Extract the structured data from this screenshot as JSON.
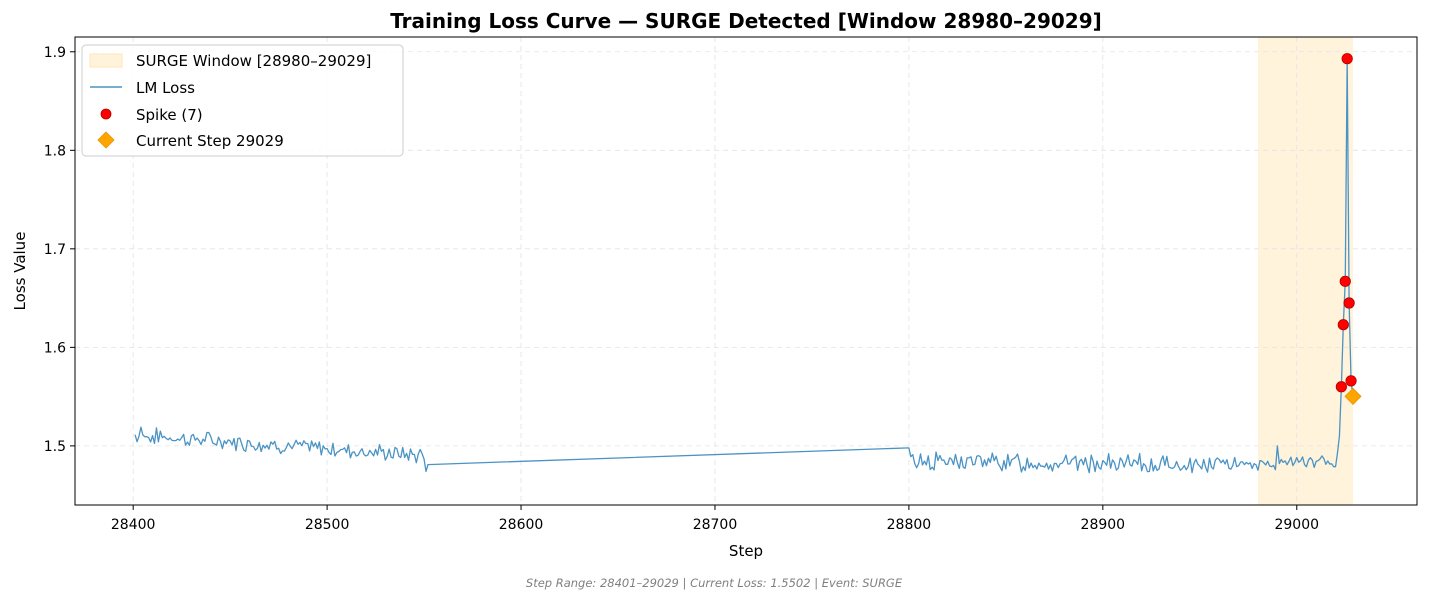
{
  "chart_data": {
    "type": "line",
    "title": "Training Loss Curve — SURGE Detected [Window 28980–29029]",
    "xlabel": "Step",
    "ylabel": "Loss Value",
    "xlim": [
      28370,
      29062
    ],
    "ylim": [
      1.44,
      1.915
    ],
    "xticks": [
      28400,
      28500,
      28600,
      28700,
      28800,
      28900,
      29000
    ],
    "yticks": [
      1.5,
      1.6,
      1.7,
      1.8,
      1.9
    ],
    "grid": true,
    "legend_position": "upper-left",
    "surge_window": {
      "label": "SURGE Window [28980–29029]",
      "start": 28980,
      "end": 29029,
      "color": "#fff3dc"
    },
    "series": [
      {
        "name": "LM Loss",
        "color": "#4a93c4",
        "segments": [
          {
            "start": 28401,
            "end": 28550,
            "base_start": 1.511,
            "base_end": 1.49,
            "noise": 0.0065,
            "seed": 7
          },
          {
            "start": 28551,
            "end": 28551,
            "value": 1.474
          },
          {
            "start": 28552,
            "end": 28552,
            "value": 1.481
          },
          {
            "start": 28800,
            "end": 28800,
            "value": 1.498
          },
          {
            "start": 28801,
            "end": 28960,
            "base_start": 1.485,
            "base_end": 1.48,
            "noise": 0.0075,
            "seed": 13
          },
          {
            "start": 28961,
            "end": 29020,
            "base_start": 1.482,
            "base_end": 1.483,
            "noise": 0.005,
            "seed": 29
          }
        ],
        "points": [
          {
            "x": 28404,
            "y": 1.519
          },
          {
            "x": 28409,
            "y": 1.504
          },
          {
            "x": 28414,
            "y": 1.515
          },
          {
            "x": 28471,
            "y": 1.504
          },
          {
            "x": 28492,
            "y": 1.505
          },
          {
            "x": 28990,
            "y": 1.5
          },
          {
            "x": 29021,
            "y": 1.493
          },
          {
            "x": 29022,
            "y": 1.51
          },
          {
            "x": 29023,
            "y": 1.56
          },
          {
            "x": 29024,
            "y": 1.623
          },
          {
            "x": 29025,
            "y": 1.667
          },
          {
            "x": 29026,
            "y": 1.893
          },
          {
            "x": 29027,
            "y": 1.645
          },
          {
            "x": 29028,
            "y": 1.566
          },
          {
            "x": 29029,
            "y": 1.5502
          }
        ]
      },
      {
        "name": "Spike (7)",
        "type": "scatter",
        "color": "#ff0000",
        "points": [
          {
            "x": 29023,
            "y": 1.56
          },
          {
            "x": 29024,
            "y": 1.623
          },
          {
            "x": 29025,
            "y": 1.667
          },
          {
            "x": 29026,
            "y": 1.893
          },
          {
            "x": 29027,
            "y": 1.645
          },
          {
            "x": 29028,
            "y": 1.566
          }
        ]
      },
      {
        "name": "Current Step 29029",
        "type": "marker",
        "color": "#ffa500",
        "x": 29029,
        "y": 1.5502
      }
    ],
    "legend": [
      "SURGE Window [28980–29029]",
      "LM Loss",
      "Spike (7)",
      "Current Step 29029"
    ],
    "footer": "Step Range: 28401–29029 | Current Loss: 1.5502 | Event: SURGE"
  }
}
